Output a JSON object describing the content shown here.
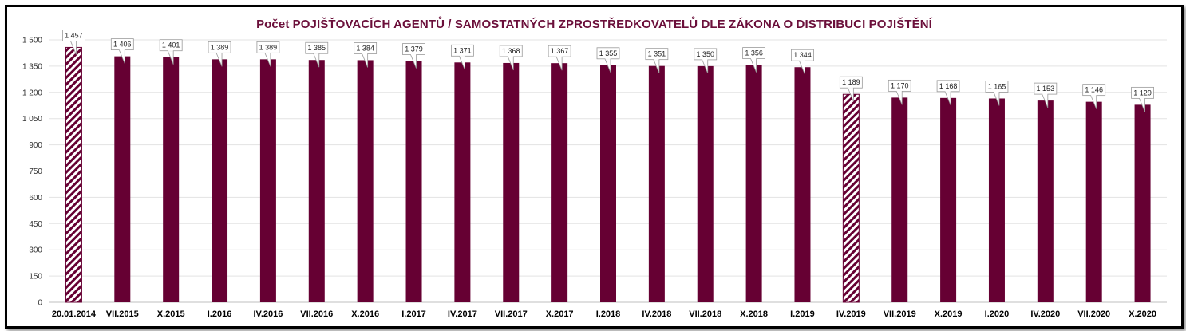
{
  "chart_data": {
    "type": "bar",
    "title": "Počet POJIŠŤOVACÍCH AGENTŮ / SAMOSTATNÝCH ZPROSTŘEDKOVATELŮ DLE ZÁKONA O DISTRIBUCI POJIŠTĚNÍ",
    "xlabel": "",
    "ylabel": "",
    "ylim": [
      0,
      1500
    ],
    "yticks": [
      0,
      150,
      300,
      450,
      600,
      750,
      900,
      1050,
      1200,
      1350,
      1500
    ],
    "ytick_labels": [
      "0",
      "150",
      "300",
      "450",
      "600",
      "750",
      "900",
      "1 050",
      "1 200",
      "1 350",
      "1 500"
    ],
    "grid": true,
    "bar_color": "#660033",
    "hatched_categories": [
      "20.01.2014",
      "IV.2019"
    ],
    "categories": [
      "20.01.2014",
      "VII.2015",
      "X.2015",
      "I.2016",
      "IV.2016",
      "VII.2016",
      "X.2016",
      "I.2017",
      "IV.2017",
      "VII.2017",
      "X.2017",
      "I.2018",
      "IV.2018",
      "VII.2018",
      "X.2018",
      "I.2019",
      "IV.2019",
      "VII.2019",
      "X.2019",
      "I.2020",
      "IV.2020",
      "VII.2020",
      "X.2020"
    ],
    "values": [
      1457,
      1406,
      1401,
      1389,
      1389,
      1385,
      1384,
      1379,
      1371,
      1368,
      1367,
      1355,
      1351,
      1350,
      1356,
      1344,
      1189,
      1170,
      1168,
      1165,
      1153,
      1146,
      1129
    ],
    "data_labels": [
      "1 457",
      "1 406",
      "1 401",
      "1 389",
      "1 389",
      "1 385",
      "1 384",
      "1 379",
      "1 371",
      "1 368",
      "1 367",
      "1 355",
      "1 351",
      "1 350",
      "1 356",
      "1 344",
      "1 189",
      "1 170",
      "1 168",
      "1 165",
      "1 153",
      "1 146",
      "1 129"
    ]
  }
}
